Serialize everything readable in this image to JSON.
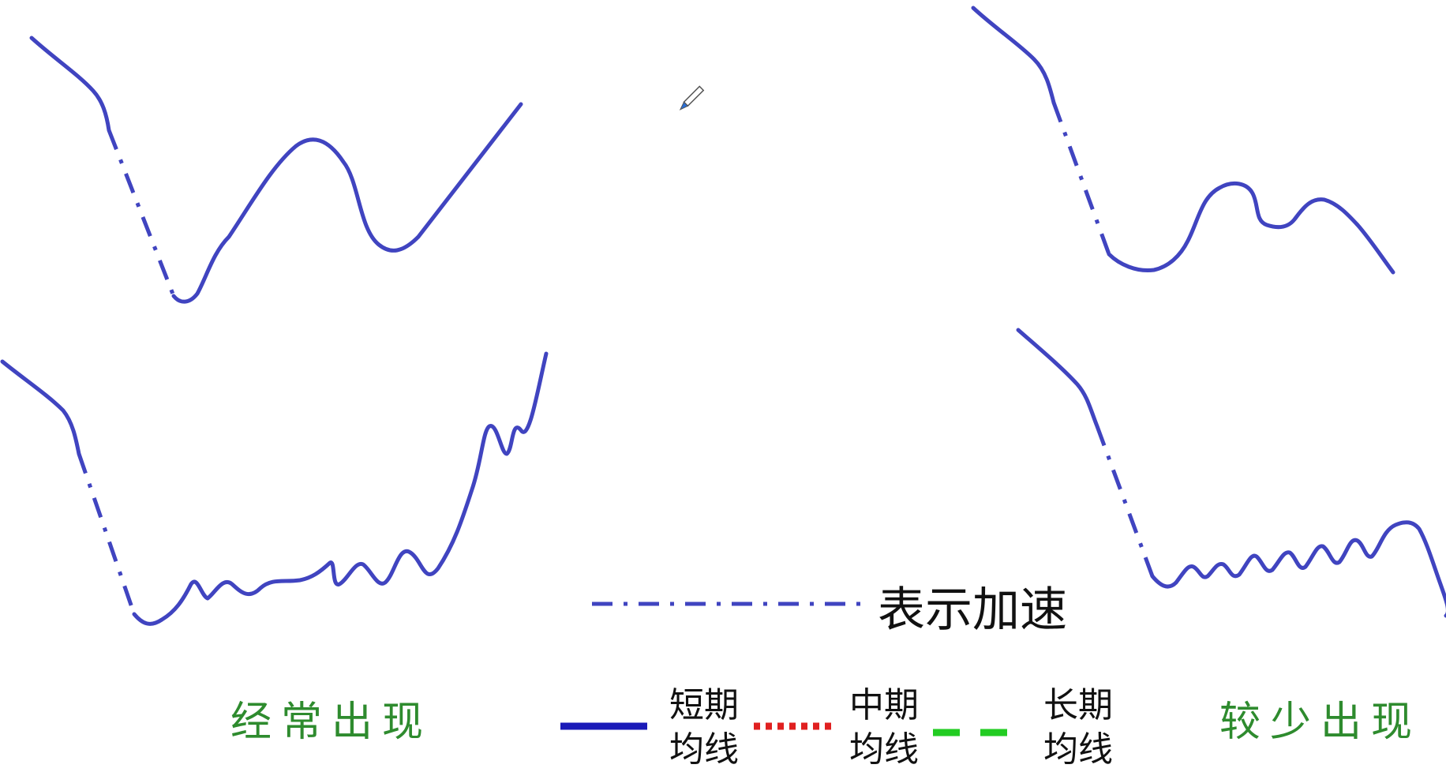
{
  "labels": {
    "frequent": "经常出现",
    "rare": "较少出现",
    "accel": "表示加速"
  },
  "legend": [
    {
      "line1": "短期",
      "line2": "均线",
      "style": "solid",
      "color": "#1a1ab8"
    },
    {
      "line1": "中期",
      "line2": "均线",
      "style": "dotted",
      "color": "#e02020"
    },
    {
      "line1": "长期",
      "line2": "均线",
      "style": "dashed",
      "color": "#22cc22"
    }
  ],
  "colors": {
    "curve": "#4044c0",
    "label_green": "#2e8b2e"
  },
  "icons": {
    "cursor": "pen-cursor-icon"
  }
}
